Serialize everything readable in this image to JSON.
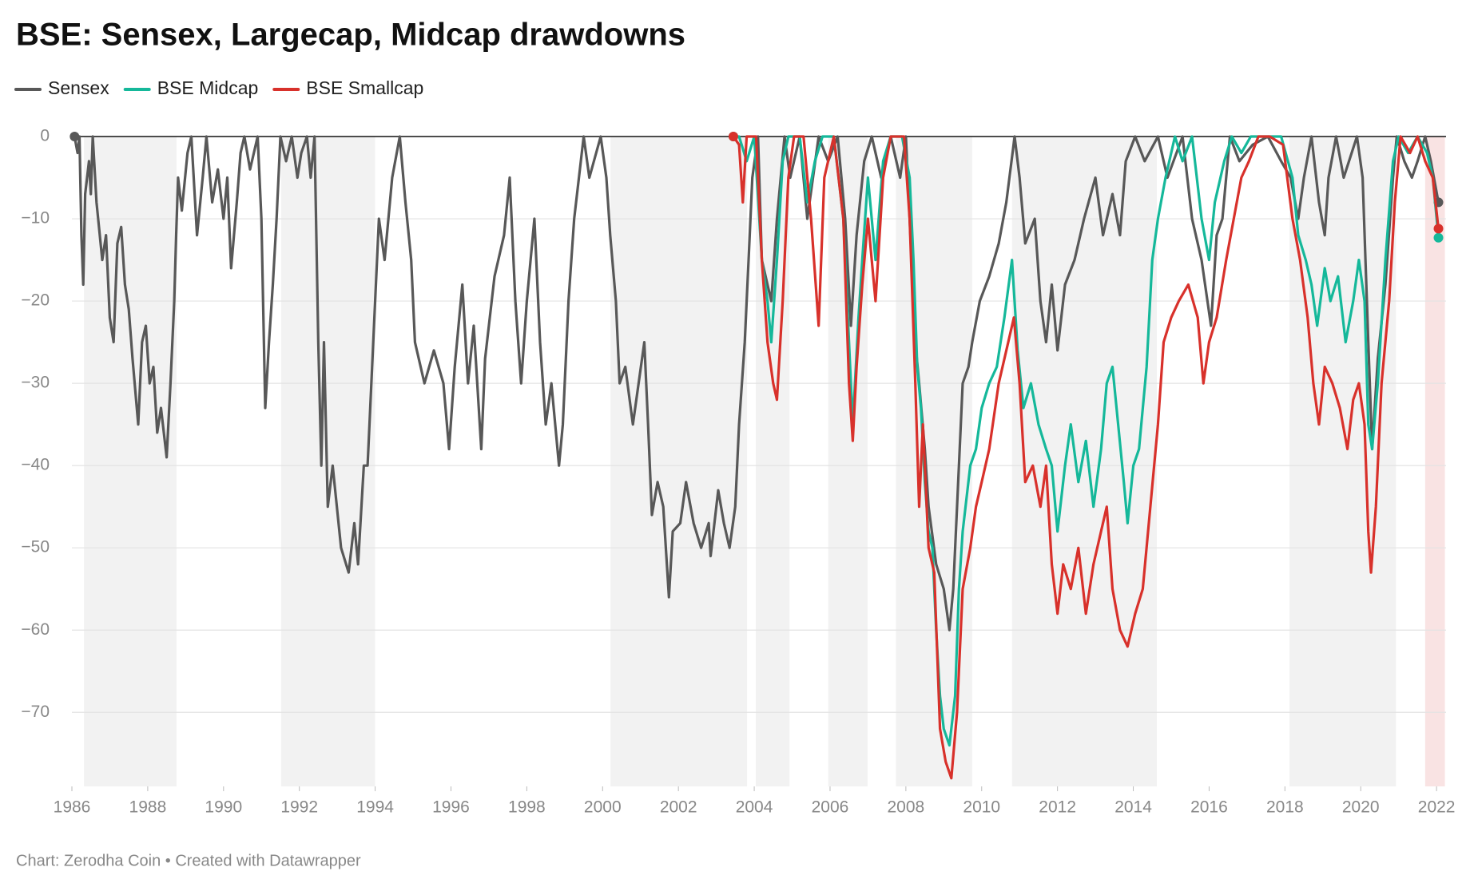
{
  "chart_data": {
    "type": "line",
    "title": "BSE: Sensex, Largecap, Midcap drawdowns",
    "source": "Chart: Zerodha Coin • Created with Datawrapper",
    "xlim": [
      1986,
      2022.25
    ],
    "xticks": [
      1986,
      1988,
      1990,
      1992,
      1994,
      1996,
      1998,
      2000,
      2002,
      2004,
      2006,
      2008,
      2010,
      2012,
      2014,
      2016,
      2018,
      2020,
      2022
    ],
    "ylim": [
      -79,
      0
    ],
    "yticks": [
      0,
      {
        "value": -10,
        "label": "−10"
      },
      {
        "value": -20,
        "label": "−20"
      },
      {
        "value": -30,
        "label": "−30"
      },
      {
        "value": -40,
        "label": "−40"
      },
      {
        "value": -50,
        "label": "−50"
      },
      {
        "value": -60,
        "label": "−60"
      },
      {
        "value": -70,
        "label": "−70"
      }
    ],
    "grid": true,
    "legend": "top-left",
    "shade_color": "#f2f2f2",
    "shaded_ranges": [
      [
        1986.32,
        1988.76
      ],
      [
        1991.52,
        1994.0
      ],
      [
        2000.21,
        2003.81
      ],
      [
        2004.04,
        2004.93
      ],
      [
        2005.95,
        2006.99
      ],
      [
        2007.74,
        2009.75
      ],
      [
        2010.8,
        2014.62
      ],
      [
        2018.12,
        2020.93
      ]
    ],
    "highlight_color": "#f9e3e3",
    "highlight_range": [
      2021.7,
      2022.22
    ],
    "series": [
      {
        "name": "Sensex",
        "color": "#585858",
        "x": [
          1986.07,
          1986.15,
          1986.2,
          1986.25,
          1986.3,
          1986.35,
          1986.45,
          1986.5,
          1986.55,
          1986.65,
          1986.8,
          1986.9,
          1987.0,
          1987.1,
          1987.2,
          1987.3,
          1987.4,
          1987.5,
          1987.6,
          1987.75,
          1987.85,
          1987.95,
          1988.05,
          1988.15,
          1988.25,
          1988.35,
          1988.5,
          1988.6,
          1988.7,
          1988.75,
          1988.8,
          1988.9,
          1989.05,
          1989.15,
          1989.3,
          1989.45,
          1989.55,
          1989.7,
          1989.85,
          1990.0,
          1990.1,
          1990.2,
          1990.35,
          1990.45,
          1990.55,
          1990.7,
          1990.9,
          1991.0,
          1991.1,
          1991.2,
          1991.3,
          1991.4,
          1991.5,
          1991.65,
          1991.8,
          1991.95,
          1992.05,
          1992.2,
          1992.3,
          1992.4,
          1992.5,
          1992.58,
          1992.65,
          1992.75,
          1992.88,
          1993.1,
          1993.3,
          1993.45,
          1993.55,
          1993.7,
          1993.8,
          1993.95,
          1994.1,
          1994.25,
          1994.45,
          1994.65,
          1994.8,
          1994.95,
          1995.05,
          1995.3,
          1995.55,
          1995.8,
          1995.95,
          1996.1,
          1996.3,
          1996.45,
          1996.6,
          1996.8,
          1996.9,
          1997.15,
          1997.4,
          1997.55,
          1997.7,
          1997.85,
          1998.0,
          1998.2,
          1998.35,
          1998.5,
          1998.65,
          1998.85,
          1998.95,
          1999.1,
          1999.25,
          1999.5,
          1999.65,
          1999.95,
          2000.1,
          2000.2,
          2000.35,
          2000.45,
          2000.6,
          2000.8,
          2001.1,
          2001.2,
          2001.3,
          2001.45,
          2001.6,
          2001.75,
          2001.85,
          2002.05,
          2002.2,
          2002.4,
          2002.6,
          2002.8,
          2002.85,
          2003.05,
          2003.2,
          2003.35,
          2003.5,
          2003.6,
          2003.75,
          2003.85,
          2003.95,
          2004.1,
          2004.2,
          2004.45,
          2004.6,
          2004.8,
          2004.95,
          2005.2,
          2005.4,
          2005.7,
          2005.95,
          2006.2,
          2006.4,
          2006.55,
          2006.7,
          2006.9,
          2007.1,
          2007.35,
          2007.6,
          2007.85,
          2008.0,
          2008.1,
          2008.25,
          2008.35,
          2008.5,
          2008.6,
          2008.8,
          2009.0,
          2009.15,
          2009.25,
          2009.4,
          2009.5,
          2009.65,
          2009.75,
          2009.95,
          2010.2,
          2010.45,
          2010.65,
          2010.87,
          2011.0,
          2011.15,
          2011.4,
          2011.55,
          2011.7,
          2011.85,
          2012.0,
          2012.2,
          2012.45,
          2012.7,
          2013.0,
          2013.2,
          2013.45,
          2013.65,
          2013.8,
          2014.05,
          2014.3,
          2014.65,
          2014.9,
          2015.3,
          2015.55,
          2015.8,
          2016.05,
          2016.2,
          2016.35,
          2016.55,
          2016.8,
          2017.15,
          2017.55,
          2017.9,
          2018.15,
          2018.35,
          2018.5,
          2018.7,
          2018.9,
          2019.05,
          2019.15,
          2019.35,
          2019.55,
          2019.9,
          2020.05,
          2020.2,
          2020.3,
          2020.45,
          2020.65,
          2020.85,
          2020.95,
          2021.15,
          2021.35,
          2021.5,
          2021.7,
          2021.85,
          2022.05
        ],
        "values": [
          0,
          -2,
          0,
          -12,
          -18,
          -7,
          -3,
          -7,
          0,
          -8,
          -15,
          -12,
          -22,
          -25,
          -13,
          -11,
          -18,
          -21,
          -27,
          -35,
          -25,
          -23,
          -30,
          -28,
          -36,
          -33,
          -39,
          -30,
          -20,
          -12,
          -5,
          -9,
          -2,
          0,
          -12,
          -5,
          0,
          -8,
          -4,
          -10,
          -5,
          -16,
          -8,
          -2,
          0,
          -4,
          0,
          -10,
          -33,
          -25,
          -18,
          -10,
          0,
          -3,
          0,
          -5,
          -2,
          0,
          -5,
          0,
          -25,
          -40,
          -25,
          -45,
          -40,
          -50,
          -53,
          -47,
          -52,
          -40,
          -40,
          -25,
          -10,
          -15,
          -5,
          0,
          -8,
          -15,
          -25,
          -30,
          -26,
          -30,
          -38,
          -28,
          -18,
          -30,
          -23,
          -38,
          -27,
          -17,
          -12,
          -5,
          -20,
          -30,
          -20,
          -10,
          -25,
          -35,
          -30,
          -40,
          -35,
          -20,
          -10,
          0,
          -5,
          0,
          -5,
          -12,
          -20,
          -30,
          -28,
          -35,
          -25,
          -35,
          -46,
          -42,
          -45,
          -56,
          -48,
          -47,
          -42,
          -47,
          -50,
          -47,
          -51,
          -43,
          -47,
          -50,
          -45,
          -35,
          -25,
          -15,
          -5,
          0,
          -15,
          -20,
          -10,
          0,
          -5,
          0,
          -10,
          0,
          -3,
          0,
          -10,
          -23,
          -12,
          -3,
          0,
          -5,
          0,
          -5,
          0,
          -10,
          -25,
          -30,
          -38,
          -45,
          -52,
          -55,
          -60,
          -55,
          -40,
          -30,
          -28,
          -25,
          -20,
          -17,
          -13,
          -8,
          0,
          -5,
          -13,
          -10,
          -20,
          -25,
          -18,
          -26,
          -18,
          -15,
          -10,
          -5,
          -12,
          -7,
          -12,
          -3,
          0,
          -3,
          0,
          -5,
          0,
          -10,
          -15,
          -23,
          -12,
          -10,
          0,
          -3,
          -1,
          0,
          -3,
          -5,
          -10,
          -5,
          0,
          -8,
          -12,
          -5,
          0,
          -5,
          0,
          -5,
          -25,
          -38,
          -27,
          -18,
          -5,
          0,
          -3,
          -5,
          -3,
          0,
          -3,
          -8
        ]
      },
      {
        "name": "BSE Midcap",
        "color": "#15b89a",
        "x": [
          2003.45,
          2003.6,
          2003.8,
          2004.0,
          2004.2,
          2004.35,
          2004.45,
          2004.6,
          2004.75,
          2004.9,
          2005.2,
          2005.4,
          2005.6,
          2005.8,
          2006.1,
          2006.35,
          2006.5,
          2006.6,
          2006.75,
          2006.85,
          2007.0,
          2007.2,
          2007.4,
          2007.6,
          2007.9,
          2008.1,
          2008.2,
          2008.3,
          2008.4,
          2008.5,
          2008.6,
          2008.7,
          2008.8,
          2008.9,
          2009.0,
          2009.15,
          2009.3,
          2009.4,
          2009.5,
          2009.7,
          2009.85,
          2010.0,
          2010.2,
          2010.4,
          2010.6,
          2010.8,
          2010.95,
          2011.1,
          2011.3,
          2011.5,
          2011.7,
          2011.85,
          2012.0,
          2012.2,
          2012.35,
          2012.55,
          2012.75,
          2012.95,
          2013.15,
          2013.3,
          2013.45,
          2013.6,
          2013.75,
          2013.85,
          2014.0,
          2014.15,
          2014.35,
          2014.5,
          2014.65,
          2014.85,
          2015.1,
          2015.3,
          2015.55,
          2015.8,
          2016.0,
          2016.15,
          2016.4,
          2016.6,
          2016.85,
          2017.1,
          2017.5,
          2017.9,
          2018.2,
          2018.35,
          2018.55,
          2018.7,
          2018.85,
          2019.05,
          2019.2,
          2019.4,
          2019.6,
          2019.8,
          2019.95,
          2020.1,
          2020.2,
          2020.3,
          2020.45,
          2020.65,
          2020.85,
          2021.0,
          2021.25,
          2021.5,
          2021.75,
          2021.9,
          2022.05
        ],
        "values": [
          0,
          0,
          -3,
          0,
          -15,
          -20,
          -25,
          -15,
          -3,
          0,
          0,
          -8,
          -3,
          0,
          0,
          -10,
          -25,
          -35,
          -22,
          -15,
          -5,
          -15,
          -3,
          0,
          0,
          -5,
          -15,
          -28,
          -33,
          -42,
          -48,
          -50,
          -60,
          -68,
          -72,
          -74,
          -68,
          -55,
          -48,
          -40,
          -38,
          -33,
          -30,
          -28,
          -22,
          -15,
          -26,
          -33,
          -30,
          -35,
          -38,
          -40,
          -48,
          -40,
          -35,
          -42,
          -37,
          -45,
          -38,
          -30,
          -28,
          -35,
          -42,
          -47,
          -40,
          -38,
          -28,
          -15,
          -10,
          -5,
          0,
          -3,
          0,
          -10,
          -15,
          -8,
          -3,
          0,
          -2,
          0,
          0,
          0,
          -5,
          -12,
          -15,
          -18,
          -23,
          -16,
          -20,
          -17,
          -25,
          -20,
          -15,
          -20,
          -35,
          -38,
          -30,
          -15,
          -3,
          0,
          -2,
          0,
          -2,
          -5,
          -12.3
        ]
      },
      {
        "name": "BSE Smallcap",
        "color": "#d8312b",
        "x": [
          2003.45,
          2003.6,
          2003.7,
          2003.8,
          2004.05,
          2004.2,
          2004.35,
          2004.5,
          2004.6,
          2004.75,
          2004.9,
          2005.05,
          2005.3,
          2005.5,
          2005.7,
          2005.85,
          2006.1,
          2006.35,
          2006.5,
          2006.6,
          2006.7,
          2006.85,
          2007.0,
          2007.2,
          2007.4,
          2007.6,
          2007.95,
          2008.1,
          2008.25,
          2008.35,
          2008.45,
          2008.6,
          2008.75,
          2008.9,
          2009.05,
          2009.2,
          2009.35,
          2009.5,
          2009.7,
          2009.85,
          2010.0,
          2010.2,
          2010.45,
          2010.7,
          2010.85,
          2011.0,
          2011.15,
          2011.35,
          2011.55,
          2011.7,
          2011.85,
          2012.0,
          2012.15,
          2012.35,
          2012.55,
          2012.75,
          2012.95,
          2013.15,
          2013.3,
          2013.45,
          2013.65,
          2013.85,
          2014.05,
          2014.25,
          2014.45,
          2014.65,
          2014.8,
          2015.0,
          2015.2,
          2015.45,
          2015.7,
          2015.85,
          2016.0,
          2016.2,
          2016.45,
          2016.65,
          2016.85,
          2017.05,
          2017.3,
          2017.6,
          2017.95,
          2018.2,
          2018.4,
          2018.6,
          2018.75,
          2018.9,
          2019.05,
          2019.25,
          2019.45,
          2019.65,
          2019.8,
          2019.95,
          2020.1,
          2020.2,
          2020.27,
          2020.4,
          2020.55,
          2020.75,
          2020.9,
          2021.05,
          2021.3,
          2021.5,
          2021.7,
          2021.9,
          2022.05
        ],
        "values": [
          0,
          -1,
          -8,
          0,
          0,
          -15,
          -25,
          -30,
          -32,
          -20,
          -5,
          0,
          0,
          -10,
          -23,
          -5,
          0,
          -10,
          -30,
          -37,
          -28,
          -18,
          -10,
          -20,
          -5,
          0,
          0,
          -10,
          -30,
          -45,
          -35,
          -50,
          -53,
          -72,
          -76,
          -78,
          -70,
          -55,
          -50,
          -45,
          -42,
          -38,
          -30,
          -25,
          -22,
          -30,
          -42,
          -40,
          -45,
          -40,
          -52,
          -58,
          -52,
          -55,
          -50,
          -58,
          -52,
          -48,
          -45,
          -55,
          -60,
          -62,
          -58,
          -55,
          -45,
          -35,
          -25,
          -22,
          -20,
          -18,
          -22,
          -30,
          -25,
          -22,
          -15,
          -10,
          -5,
          -3,
          0,
          0,
          -1,
          -10,
          -15,
          -22,
          -30,
          -35,
          -28,
          -30,
          -33,
          -38,
          -32,
          -30,
          -35,
          -48,
          -53,
          -45,
          -30,
          -20,
          -8,
          0,
          -2,
          0,
          -3,
          -5,
          -11.2
        ]
      }
    ]
  }
}
